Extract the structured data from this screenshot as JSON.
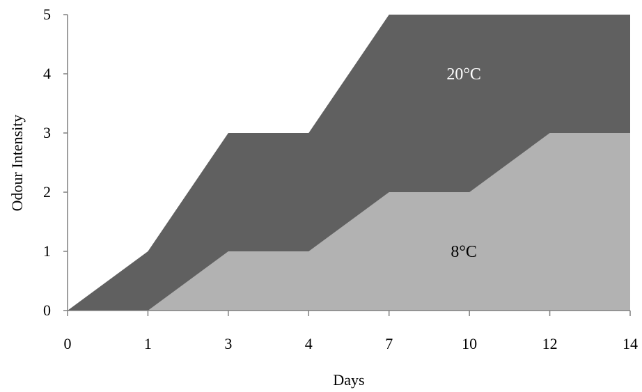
{
  "chart_data": {
    "type": "area",
    "categories": [
      "0",
      "1",
      "3",
      "4",
      "7",
      "10",
      "12",
      "14"
    ],
    "xlabel": "Days",
    "ylabel": "Odour Intensity",
    "ylim": [
      0,
      5
    ],
    "yticks": [
      0,
      1,
      2,
      3,
      4,
      5
    ],
    "grid": false,
    "legend": "none",
    "series": [
      {
        "values": [
          0,
          1,
          3,
          3,
          5,
          5,
          5,
          5
        ],
        "color": "#606060"
      },
      {
        "values": [
          0,
          0,
          1,
          1,
          2,
          2,
          3,
          3
        ],
        "color": "#b2b2b2"
      }
    ],
    "annotations": [
      {
        "text": "20°C",
        "series": 0,
        "x": "10",
        "y": 4
      },
      {
        "text": "8°C",
        "series": 1,
        "x": "10",
        "y": 1
      }
    ]
  }
}
